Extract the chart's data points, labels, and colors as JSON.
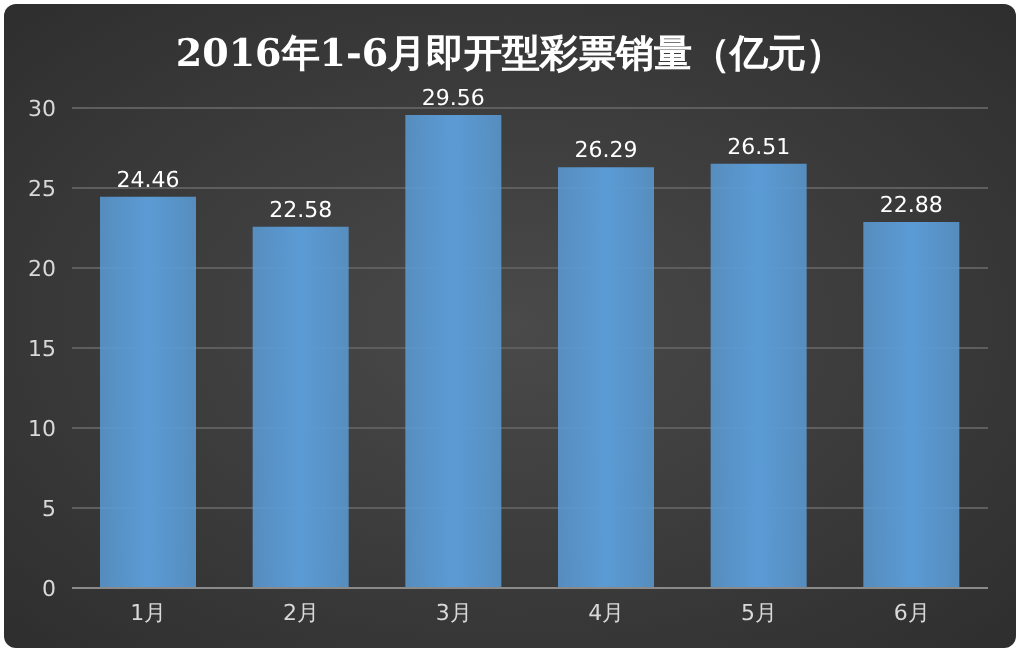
{
  "chart_data": {
    "type": "bar",
    "title": "2016年1-6月即开型彩票销量（亿元）",
    "categories": [
      "1月",
      "2月",
      "3月",
      "4月",
      "5月",
      "6月"
    ],
    "values": [
      24.46,
      22.58,
      29.56,
      26.29,
      26.51,
      22.88
    ],
    "color": "#5b9bd5",
    "ylim": [
      0,
      30
    ],
    "yticks": [
      0,
      5,
      10,
      15,
      20,
      25,
      30
    ],
    "grid": "y",
    "data_labels": true
  }
}
